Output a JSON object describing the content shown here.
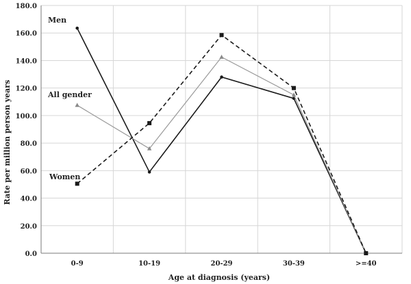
{
  "chart_data": {
    "type": "line",
    "categories": [
      "0-9",
      "10-19",
      "20-29",
      "30-39",
      ">=40"
    ],
    "xlabel": "Age at diagnosis (years)",
    "ylabel": "Rate per million person years",
    "ylim": [
      0,
      180
    ],
    "yticks": [
      "0.0",
      "20.0",
      "40.0",
      "60.0",
      "80.0",
      "100.0",
      "120.0",
      "140.0",
      "160.0",
      "180.0"
    ],
    "grid": true,
    "legend": "inline labels",
    "series": [
      {
        "name": "Men",
        "values": [
          163.5,
          59,
          128,
          112.5,
          0
        ],
        "color": "#1a1a1a",
        "dash": "solid",
        "marker": "dot"
      },
      {
        "name": "All gender",
        "values": [
          107.5,
          76,
          142.5,
          115,
          0
        ],
        "color": "#9a9a9a",
        "dash": "solid",
        "marker": "triangle"
      },
      {
        "name": "Women",
        "values": [
          50.5,
          94.5,
          158.5,
          120,
          0
        ],
        "color": "#1a1a1a",
        "dash": "dashed",
        "marker": "square"
      }
    ]
  }
}
